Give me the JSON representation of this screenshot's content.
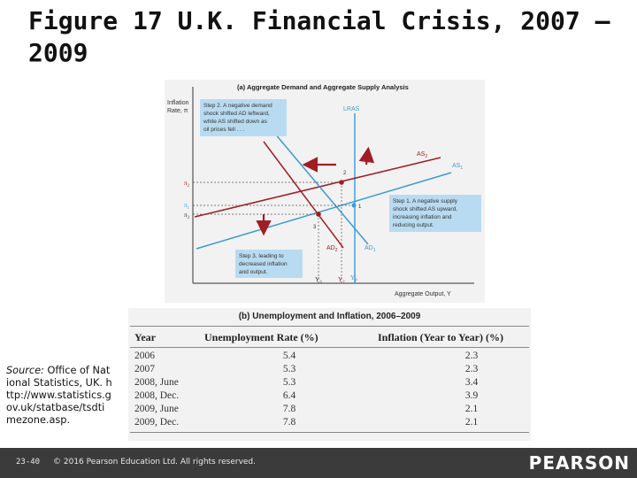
{
  "slide": {
    "title": "Figure 17 U.K. Financial Crisis, 2007 –2009",
    "page_number": "23-40",
    "copyright": "© 2016 Pearson Education Ltd. All rights reserved.",
    "logo_text": "PEARSON"
  },
  "source": {
    "label": "Source:",
    "text": " Office of National Statistics, UK. http://www.statistics.gov.uk/statbase/tsdtimezone.asp."
  },
  "diagram": {
    "title": "(a) Aggregate Demand and Aggregate Supply Analysis",
    "y_axis_label_1": "Inflation",
    "y_axis_label_2": "Rate, π",
    "x_axis_label": "Aggregate Output, Y",
    "curves": {
      "lras": "LRAS",
      "as2": "AS",
      "as2_sub": "2",
      "as1": "AS",
      "as1_sub": "1",
      "ad1": "AD",
      "ad1_sub": "1",
      "ad2": "AD",
      "ad2_sub": "2"
    },
    "y_ticks": {
      "pi2": "π",
      "pi2_sub": "2",
      "pi1": "π",
      "pi1_sub": "1",
      "pi3": "π",
      "pi3_sub": "3"
    },
    "x_ticks": {
      "y3": "Y",
      "y3_sub": "3",
      "y2": "Y",
      "y2_sub": "2",
      "yp": "Y",
      "yp_sub": "P"
    },
    "points": {
      "p1": "1",
      "p2": "2",
      "p3": "3"
    },
    "step2": [
      "Step 2. A negative demand",
      "shock shifted AD leftward,",
      "while AS shifted down as",
      "oil prices fell . . ."
    ],
    "step1": [
      "Step 1. A negative supply",
      "shock shifted AS upward,",
      "increasing inflation and",
      "reducing output."
    ],
    "step3": [
      "Step 3. leading to",
      "decreased inflation",
      "and output."
    ],
    "colors": {
      "ad": "#a01e24",
      "as": "#3a9bd5",
      "box": "#b9dbf1",
      "arrow": "#a01e24",
      "dot": "#a01e24"
    }
  },
  "table": {
    "title": "(b) Unemployment and Inflation, 2006–2009",
    "headers": {
      "year": "Year",
      "unemployment": "Unemployment Rate (%)",
      "inflation": "Inflation (Year to Year) (%)"
    },
    "rows": [
      {
        "year": "2006",
        "unemployment": "5.4",
        "inflation": "2.3"
      },
      {
        "year": "2007",
        "unemployment": "5.3",
        "inflation": "2.3"
      },
      {
        "year": "2008, June",
        "unemployment": "5.3",
        "inflation": "3.4"
      },
      {
        "year": "2008, Dec.",
        "unemployment": "6.4",
        "inflation": "3.9"
      },
      {
        "year": "2009, June",
        "unemployment": "7.8",
        "inflation": "2.1"
      },
      {
        "year": "2009, Dec.",
        "unemployment": "7.8",
        "inflation": "2.1"
      }
    ]
  }
}
